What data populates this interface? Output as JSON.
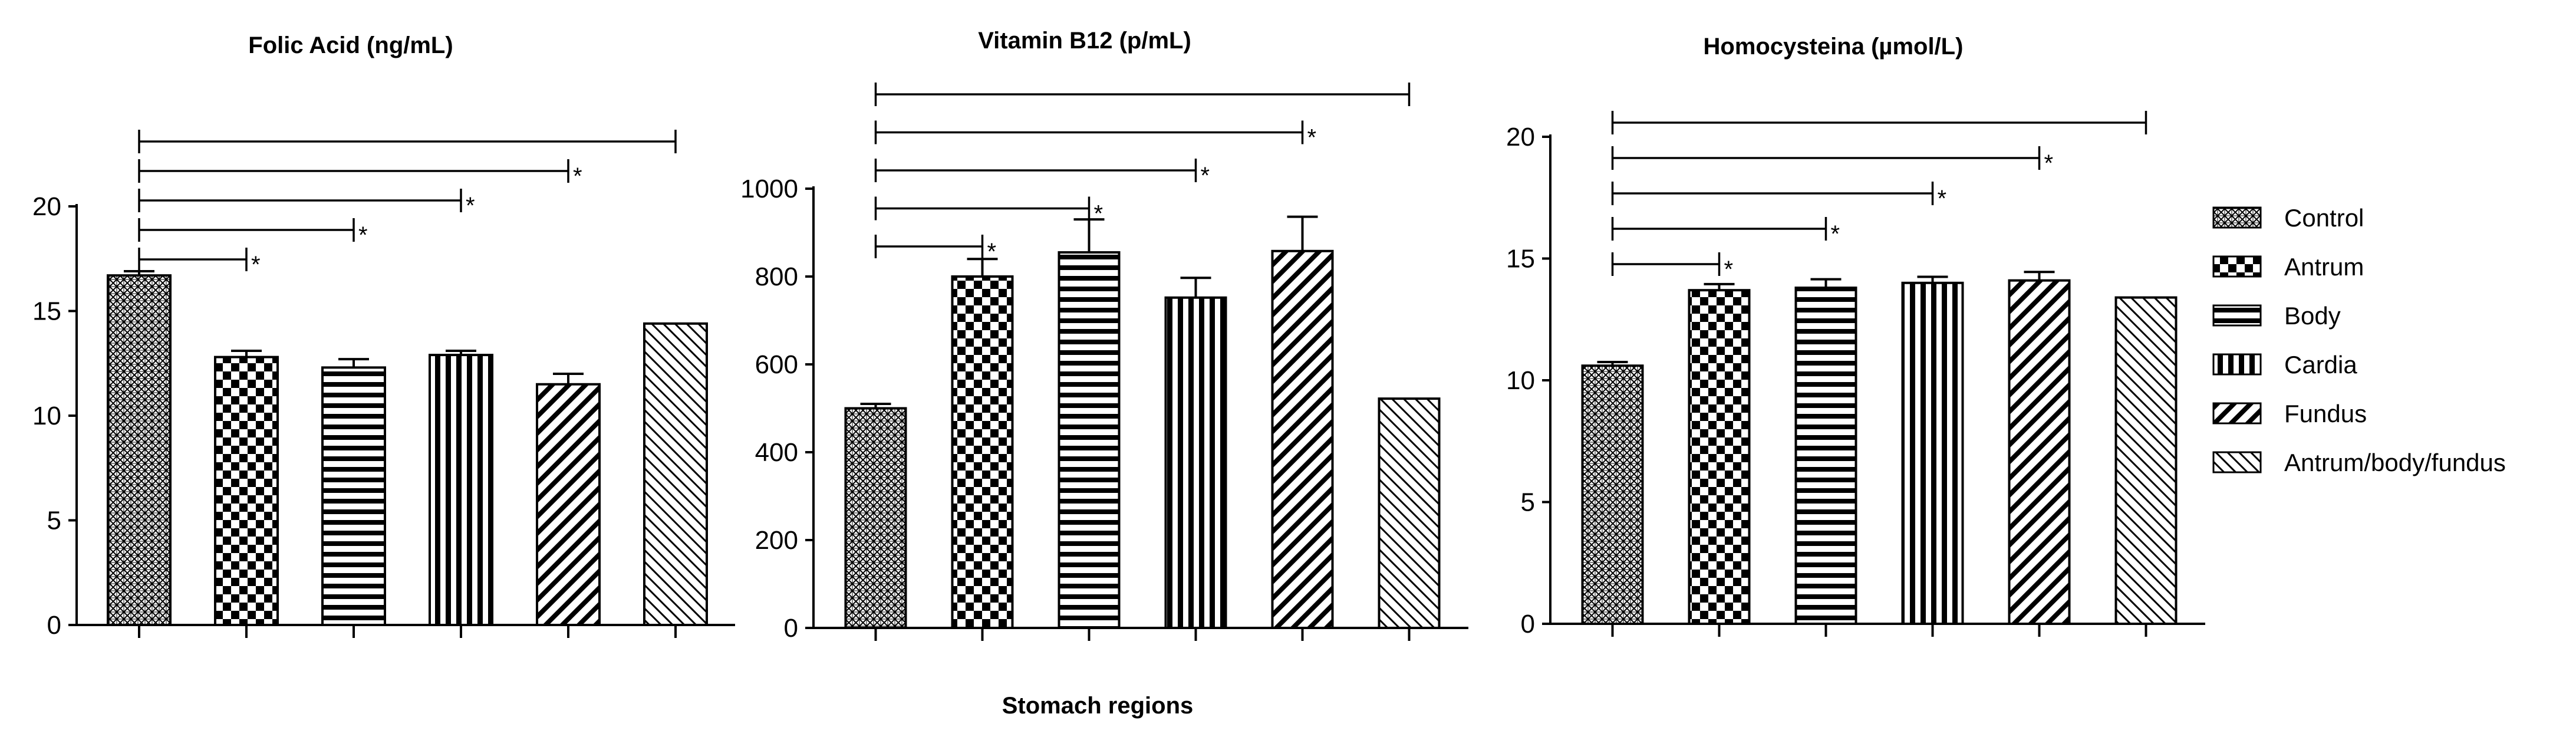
{
  "chart_data": [
    {
      "type": "bar",
      "title": "Folic Acid (ng/mL)",
      "categories": [
        "Control",
        "Antrum",
        "Body",
        "Cardia",
        "Fundus",
        "Antrum/body/fundus"
      ],
      "values": [
        16.7,
        12.8,
        12.3,
        12.9,
        11.5,
        14.4
      ],
      "errors": [
        0.2,
        0.3,
        0.4,
        0.2,
        0.5,
        0
      ],
      "ylim": [
        0,
        20
      ],
      "yticks": [
        "0",
        "5",
        "10",
        "15",
        "20"
      ],
      "brackets": [
        {
          "from": 0,
          "to": 1,
          "star": "*"
        },
        {
          "from": 0,
          "to": 2,
          "star": "*"
        },
        {
          "from": 0,
          "to": 3,
          "star": "*"
        },
        {
          "from": 0,
          "to": 4,
          "star": "*"
        },
        {
          "from": 0,
          "to": 5,
          "star": ""
        }
      ]
    },
    {
      "type": "bar",
      "title": "Vitamin B12 (p/mL)",
      "categories": [
        "Control",
        "Antrum",
        "Body",
        "Cardia",
        "Fundus",
        "Antrum/body/fundus"
      ],
      "values": [
        500,
        800,
        855,
        752,
        858,
        522
      ],
      "errors": [
        10,
        40,
        75,
        45,
        78,
        0
      ],
      "ylim": [
        0,
        1000
      ],
      "yticks": [
        "0",
        "200",
        "400",
        "600",
        "800",
        "1000"
      ],
      "brackets": [
        {
          "from": 0,
          "to": 1,
          "star": "*"
        },
        {
          "from": 0,
          "to": 2,
          "star": "*"
        },
        {
          "from": 0,
          "to": 3,
          "star": "*"
        },
        {
          "from": 0,
          "to": 4,
          "star": "*"
        },
        {
          "from": 0,
          "to": 5,
          "star": ""
        }
      ]
    },
    {
      "type": "bar",
      "title": "Homocysteina (µmol/L)",
      "categories": [
        "Control",
        "Antrum",
        "Body",
        "Cardia",
        "Fundus",
        "Antrum/body/fundus"
      ],
      "values": [
        10.6,
        13.7,
        13.8,
        14.0,
        14.1,
        13.4
      ],
      "errors": [
        0.15,
        0.25,
        0.35,
        0.25,
        0.35,
        0
      ],
      "ylim": [
        0,
        20
      ],
      "yticks": [
        "0",
        "5",
        "10",
        "15",
        "20"
      ],
      "brackets": [
        {
          "from": 0,
          "to": 1,
          "star": "*"
        },
        {
          "from": 0,
          "to": 2,
          "star": "*"
        },
        {
          "from": 0,
          "to": 3,
          "star": "*"
        },
        {
          "from": 0,
          "to": 4,
          "star": "*"
        },
        {
          "from": 0,
          "to": 5,
          "star": ""
        }
      ]
    }
  ],
  "xlabel": "Stomach regions",
  "legend": {
    "placement": "right",
    "items": [
      {
        "label": "Control",
        "pattern": "crosshatch-pattern"
      },
      {
        "label": "Antrum",
        "pattern": "checker-pattern"
      },
      {
        "label": "Body",
        "pattern": "horizontal-stripes-pattern"
      },
      {
        "label": "Cardia",
        "pattern": "vertical-stripes-pattern"
      },
      {
        "label": "Fundus",
        "pattern": "diagonal-stripes-pattern"
      },
      {
        "label": "Antrum/body/fundus",
        "pattern": "back-diagonal-stripes-pattern"
      }
    ]
  },
  "colors": {
    "ink": "#000000",
    "background": "#ffffff"
  }
}
